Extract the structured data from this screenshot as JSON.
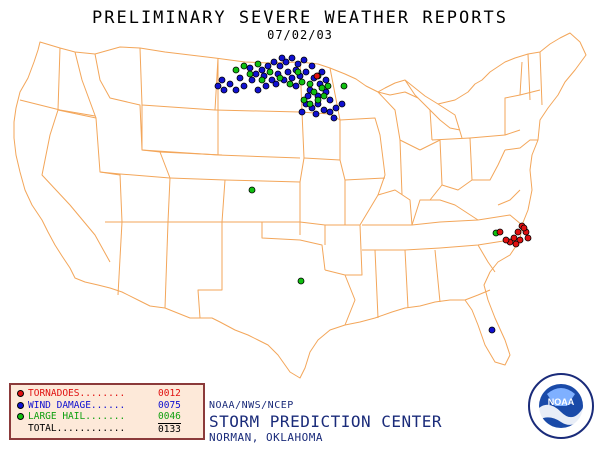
{
  "header": {
    "title": "PRELIMINARY SEVERE WEATHER REPORTS",
    "date": "07/02/03"
  },
  "colors": {
    "boundary": "#f3a65a",
    "tornado": "#e01010",
    "wind": "#1010d0",
    "hail": "#10c010",
    "legend_bg": "#fde9d9",
    "legend_border": "#8b3a3a",
    "footer_text": "#1a2b7a"
  },
  "legend": {
    "tornado": {
      "label": "TORNADOES........",
      "count": "0012",
      "color": "#e01010"
    },
    "wind": {
      "label": "WIND DAMAGE......",
      "count": "0075",
      "color": "#1010d0"
    },
    "hail": {
      "label": "LARGE HAIL.......",
      "count": "0046",
      "color": "#10c010"
    },
    "total": {
      "label": "TOTAL............",
      "count": "0133"
    }
  },
  "footer": {
    "agency": "NOAA/NWS/NCEP",
    "center": "STORM PREDICTION CENTER",
    "location": "NORMAN, OKLAHOMA"
  },
  "logo": {
    "text": "NOAA",
    "icon": "noaa-logo-icon"
  }
}
